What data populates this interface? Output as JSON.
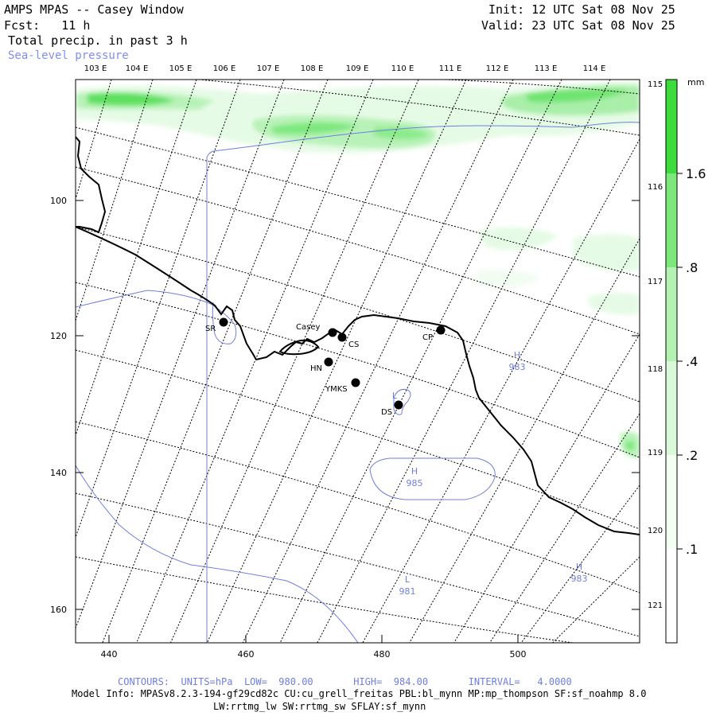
{
  "header": {
    "title": "AMPS MPAS -- Casey Window",
    "fcst": "Fcst:   11 h",
    "field": "Total precip. in past 3 h",
    "overlay": "Sea-level pressure",
    "init": "Init: 12 UTC Sat 08 Nov 25",
    "valid": "Valid: 23 UTC Sat 08 Nov 25"
  },
  "lon_labels_top": [
    "103 E",
    "104 E",
    "105 E",
    "106 E",
    "107 E",
    "108 E",
    "109 E",
    "110 E",
    "111 E",
    "112 E",
    "113 E",
    "114 E"
  ],
  "lon_labels_right": [
    "115 E",
    "116 E",
    "117 E",
    "118 E",
    "119 E",
    "120 E",
    "121 E"
  ],
  "x_ticks": [
    "440",
    "460",
    "480",
    "500"
  ],
  "y_ticks": [
    "100",
    "120",
    "140",
    "160"
  ],
  "colorbar": {
    "unit": "mm",
    "labels": [
      ".1",
      ".2",
      ".4",
      ".8",
      "1.6"
    ],
    "colors": [
      "#f3fff3",
      "#d9f9d9",
      "#b3f2b3",
      "#7ce87c",
      "#3ddc3d"
    ]
  },
  "stations": [
    {
      "name": "SR"
    },
    {
      "name": "Casey"
    },
    {
      "name": "CS"
    },
    {
      "name": "CP"
    },
    {
      "name": "HN"
    },
    {
      "name": "YMKS"
    },
    {
      "name": "DS"
    }
  ],
  "pressure_centers": [
    {
      "sym": "H",
      "val": "983"
    },
    {
      "sym": "L",
      "val": ""
    },
    {
      "sym": "H",
      "val": "985"
    },
    {
      "sym": "H",
      "val": "983"
    },
    {
      "sym": "L",
      "val": "981"
    }
  ],
  "footer": {
    "contours": "CONTOURS:  UNITS=hPa  LOW=  980.00       HIGH=  984.00       INTERVAL=   4.0000",
    "model_info": "Model Info: MPASv8.2.3-194-gf29cd82c CU:cu_grell_freitas PBL:bl_mynn MP:mp_thompson SF:sf_noahmp 8.0",
    "physics": "LW:rrtmg_lw SW:rrtmg_sw SFLAY:sf_mynn"
  }
}
